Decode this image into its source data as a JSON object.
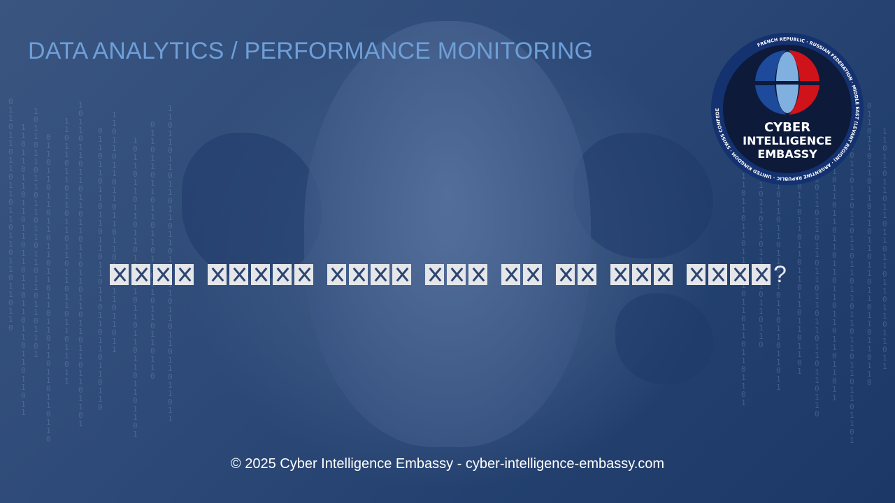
{
  "header": {
    "title": "DATA ANALYTICS / PERFORMANCE MONITORING"
  },
  "main": {
    "headline": "☒☒☒☒ ☒☒☒☒☒ ☒☒☒☒ ☒☒☒ ☒☒ ☒☒ ☒☒☒ ☒☒☒☒?"
  },
  "logo": {
    "line1": "CYBER",
    "line2": "INTELLIGENCE",
    "line3": "EMBASSY",
    "ring_text": "FRENCH REPUBLIC · RUSSIAN FEDERATION · MIDDLE EAST (LEVANT REGION) · ARGENTINE REPUBLIC · UNITED KINGDOM · SWISS CONFEDERATION · UNITED STATES OF AMERICA · EUROPEAN UNION ·"
  },
  "footer": {
    "text": "© 2025 Cyber Intelligence Embassy - cyber-intelligence-embassy.com"
  },
  "colors": {
    "title": "#6e9fd8",
    "logo_bg": "#0d1a3a",
    "globe_blue": "#1d4a9a",
    "globe_light": "#7fb0e0",
    "globe_red": "#d0121b"
  }
}
